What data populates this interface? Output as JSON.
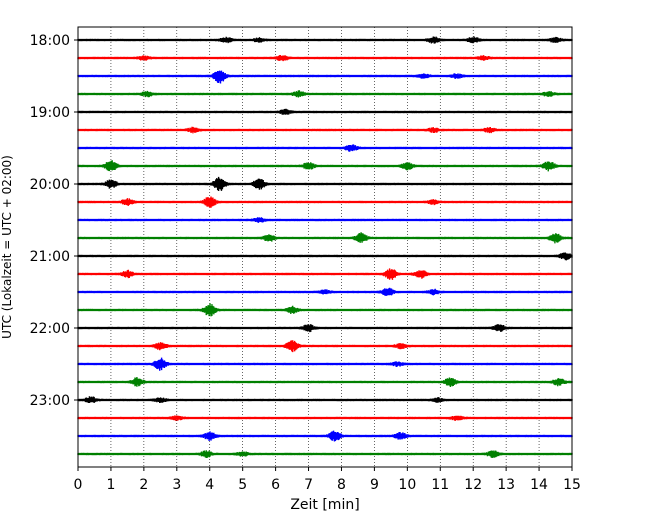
{
  "chart_data": {
    "type": "line",
    "subtype": "helicorder-seismogram",
    "xlabel": "Zeit  [min]",
    "ylabel": "UTC (Lokalzeit = UTC + 02:00)",
    "xlim": [
      0,
      15
    ],
    "x_ticks": [
      "0",
      "1",
      "2",
      "3",
      "4",
      "5",
      "6",
      "7",
      "8",
      "9",
      "10",
      "11",
      "12",
      "13",
      "14",
      "15"
    ],
    "y_tick_labels": [
      "18:00",
      "19:00",
      "20:00",
      "21:00",
      "22:00",
      "23:00"
    ],
    "grid": "vertical dotted lines at each minute",
    "trace_colors": [
      "#000000",
      "#ff0000",
      "#0000ff",
      "#008000"
    ],
    "traces": [
      {
        "start": "18:00",
        "events": [
          [
            4.5,
            0.35
          ],
          [
            5.5,
            0.3
          ],
          [
            10.8,
            0.45
          ],
          [
            12.0,
            0.4
          ],
          [
            14.5,
            0.35
          ]
        ]
      },
      {
        "start": "18:15",
        "events": [
          [
            2.0,
            0.3
          ],
          [
            6.2,
            0.4
          ],
          [
            12.3,
            0.3
          ]
        ]
      },
      {
        "start": "18:30",
        "events": [
          [
            4.3,
            1.0
          ],
          [
            10.5,
            0.3
          ],
          [
            11.5,
            0.3
          ]
        ]
      },
      {
        "start": "18:45",
        "events": [
          [
            2.1,
            0.35
          ],
          [
            6.7,
            0.4
          ],
          [
            14.3,
            0.35
          ]
        ]
      },
      {
        "start": "19:00",
        "events": [
          [
            6.3,
            0.35
          ]
        ]
      },
      {
        "start": "19:15",
        "events": [
          [
            3.5,
            0.35
          ],
          [
            10.8,
            0.3
          ],
          [
            12.5,
            0.35
          ]
        ]
      },
      {
        "start": "19:30",
        "events": [
          [
            8.3,
            0.5
          ]
        ]
      },
      {
        "start": "19:45",
        "events": [
          [
            1.0,
            0.8
          ],
          [
            7.0,
            0.5
          ],
          [
            10.0,
            0.5
          ],
          [
            14.3,
            0.7
          ]
        ]
      },
      {
        "start": "20:00",
        "events": [
          [
            1.0,
            0.6
          ],
          [
            4.3,
            1.0
          ],
          [
            5.5,
            0.8
          ]
        ]
      },
      {
        "start": "20:15",
        "events": [
          [
            1.5,
            0.45
          ],
          [
            4.0,
            0.8
          ],
          [
            10.8,
            0.3
          ]
        ]
      },
      {
        "start": "20:30",
        "events": [
          [
            5.5,
            0.3
          ]
        ]
      },
      {
        "start": "20:45",
        "events": [
          [
            5.8,
            0.5
          ],
          [
            8.6,
            0.7
          ],
          [
            14.5,
            0.7
          ]
        ]
      },
      {
        "start": "21:00",
        "events": [
          [
            14.8,
            0.5
          ]
        ]
      },
      {
        "start": "21:15",
        "events": [
          [
            1.5,
            0.5
          ],
          [
            9.5,
            0.8
          ],
          [
            10.4,
            0.6
          ]
        ]
      },
      {
        "start": "21:30",
        "events": [
          [
            7.5,
            0.3
          ],
          [
            9.4,
            0.6
          ],
          [
            10.8,
            0.35
          ]
        ]
      },
      {
        "start": "21:45",
        "events": [
          [
            4.0,
            0.9
          ],
          [
            6.5,
            0.5
          ]
        ]
      },
      {
        "start": "22:00",
        "events": [
          [
            7.0,
            0.5
          ],
          [
            12.8,
            0.5
          ]
        ]
      },
      {
        "start": "22:15",
        "events": [
          [
            2.5,
            0.5
          ],
          [
            6.5,
            0.8
          ],
          [
            9.8,
            0.35
          ]
        ]
      },
      {
        "start": "22:30",
        "events": [
          [
            2.5,
            0.9
          ],
          [
            9.7,
            0.3
          ]
        ]
      },
      {
        "start": "22:45",
        "events": [
          [
            1.8,
            0.6
          ],
          [
            11.3,
            0.6
          ],
          [
            14.6,
            0.5
          ]
        ]
      },
      {
        "start": "23:00",
        "events": [
          [
            0.4,
            0.45
          ],
          [
            2.5,
            0.3
          ],
          [
            10.9,
            0.3
          ]
        ]
      },
      {
        "start": "23:15",
        "events": [
          [
            3.0,
            0.3
          ],
          [
            11.5,
            0.3
          ]
        ]
      },
      {
        "start": "23:30",
        "events": [
          [
            4.0,
            0.6
          ],
          [
            7.8,
            0.7
          ],
          [
            9.8,
            0.5
          ]
        ]
      },
      {
        "start": "23:45",
        "events": [
          [
            3.9,
            0.45
          ],
          [
            5.0,
            0.3
          ],
          [
            12.6,
            0.45
          ]
        ]
      }
    ]
  }
}
